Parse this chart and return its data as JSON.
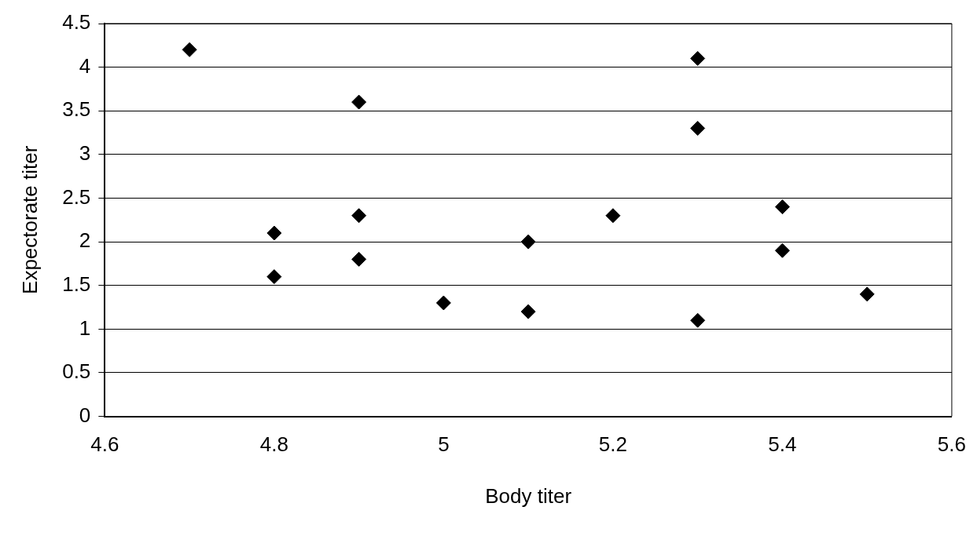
{
  "chart_data": {
    "type": "scatter",
    "xlabel": "Body titer",
    "ylabel": "Expectorate titer",
    "x": [
      4.7,
      4.8,
      4.8,
      4.9,
      4.9,
      4.9,
      5.0,
      5.1,
      5.1,
      5.2,
      5.3,
      5.3,
      5.3,
      5.4,
      5.4,
      5.5
    ],
    "values": [
      4.2,
      2.1,
      1.6,
      3.6,
      2.3,
      1.8,
      1.3,
      2.0,
      1.2,
      2.3,
      4.1,
      3.3,
      1.1,
      2.4,
      1.9,
      1.4
    ],
    "color": "#000000",
    "marker": "diamond",
    "xlim": [
      4.6,
      5.6
    ],
    "xticks": [
      4.6,
      4.8,
      5,
      5.2,
      5.4,
      5.6
    ],
    "ylim": [
      0,
      4.5
    ],
    "yticks": [
      0,
      0.5,
      1,
      1.5,
      2,
      2.5,
      3,
      3.5,
      4,
      4.5
    ],
    "grid": "y",
    "legend": false
  }
}
